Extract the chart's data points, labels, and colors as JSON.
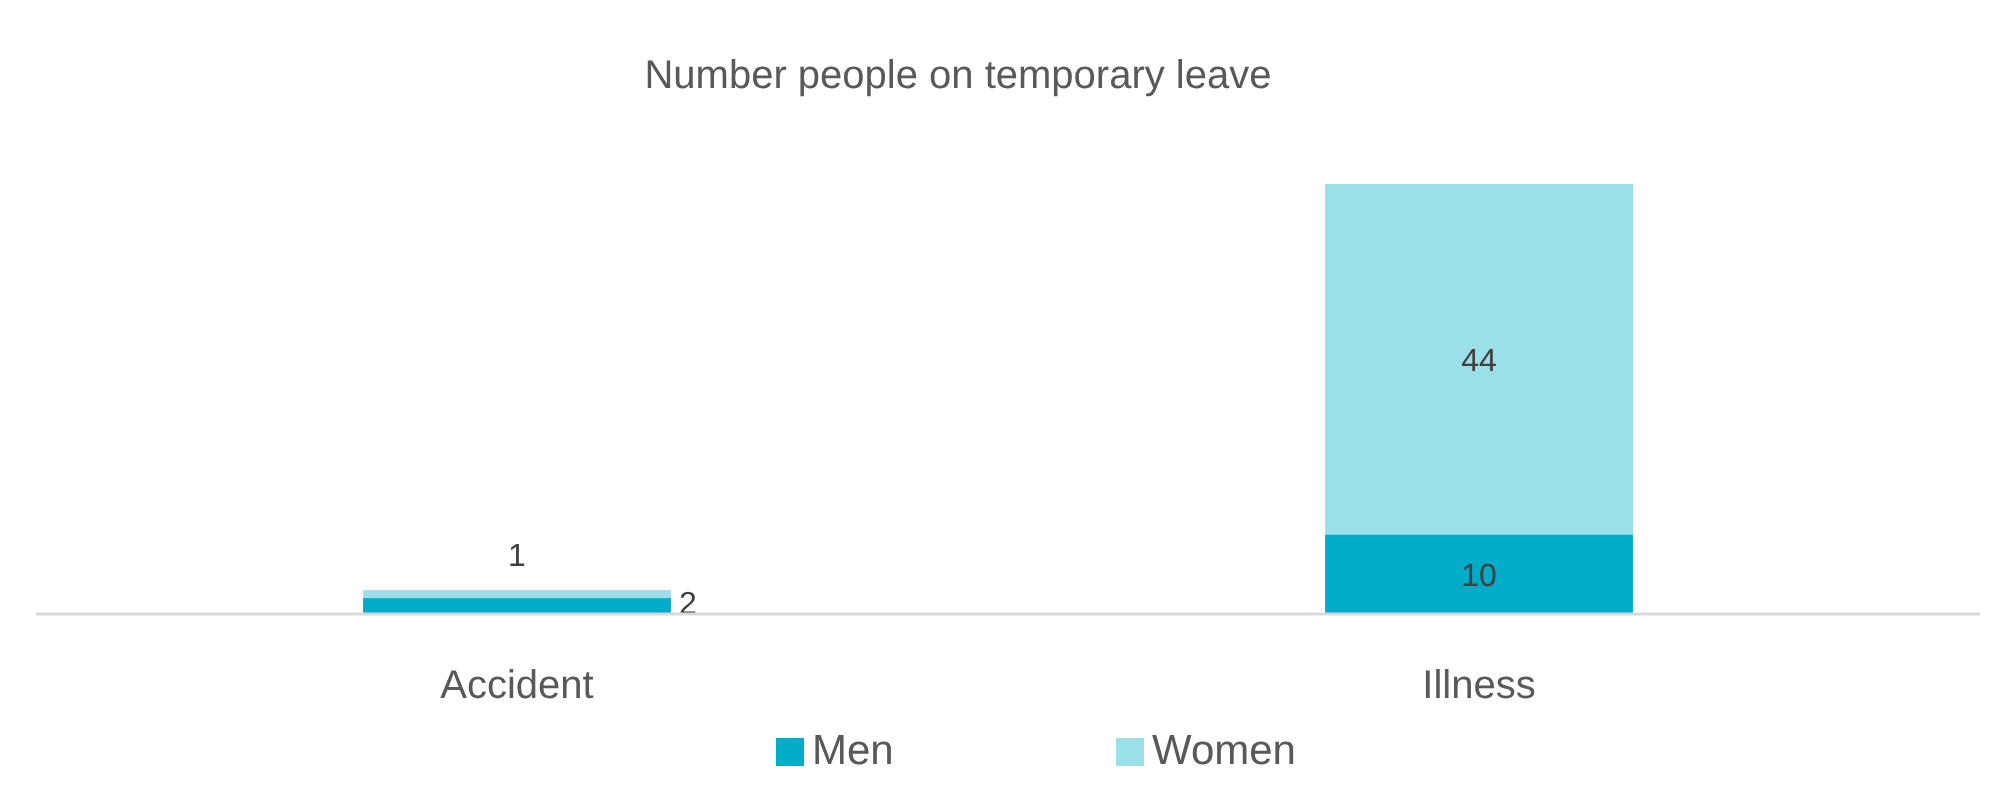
{
  "chart_data": {
    "type": "bar",
    "title": "Number people on temporary leave",
    "categories": [
      "Accident",
      "Illness"
    ],
    "stacked": true,
    "data_labels": true,
    "legend": "bottom",
    "series": [
      {
        "name": "Men",
        "color": "#00acc8",
        "values": [
          2,
          10
        ]
      },
      {
        "name": "Women",
        "color": "#9bdfe9",
        "values": [
          1,
          44
        ]
      }
    ]
  }
}
